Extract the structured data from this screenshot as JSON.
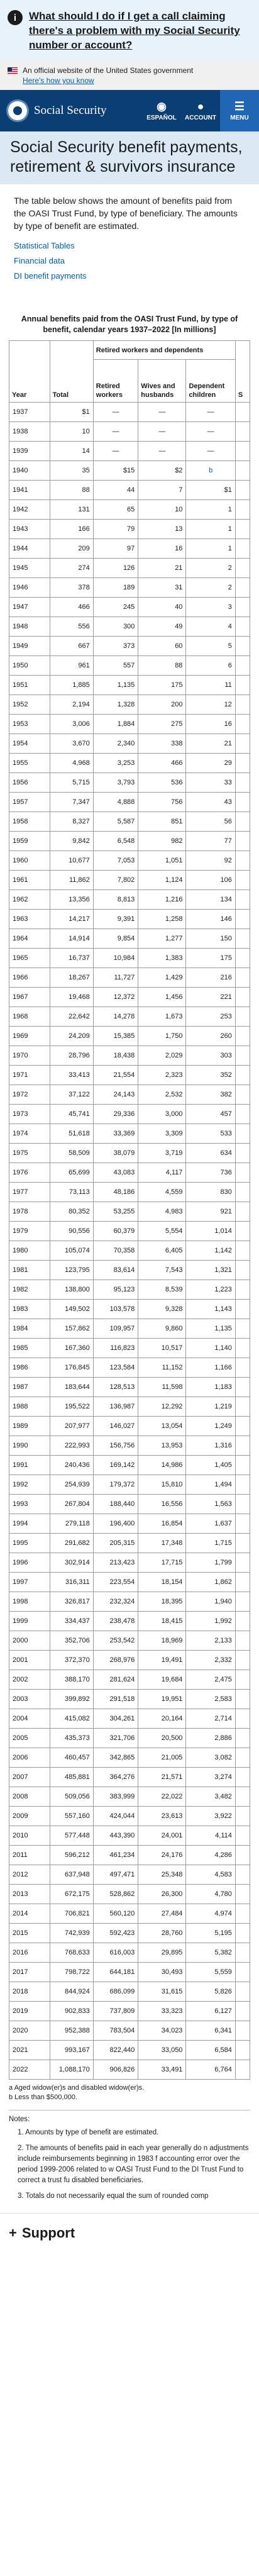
{
  "alert": {
    "icon": "info-icon",
    "link_text": "What should I do if I get a call claiming there's a problem with my Social Security number or account?"
  },
  "gov_banner": {
    "text": "An official website of the United States government",
    "how": "Here's how you know"
  },
  "header": {
    "logo_text": "Social Security",
    "espanol": "ESPAÑOL",
    "account": "ACCOUNT",
    "menu": "MENU"
  },
  "page": {
    "title": "Social Security benefit payments, retirement & survivors insurance",
    "intro": "The table below shows the amount of benefits paid from the OASI Trust Fund, by type of beneficiary. The amounts by type of benefit are estimated.",
    "links": [
      "Statistical Tables",
      "Financial data",
      "DI benefit payments"
    ]
  },
  "table": {
    "caption": "Annual benefits paid from the OASI Trust Fund, by type of benefit, calendar years 1937–2022 [In millions]",
    "group_header": "Retired workers and dependents",
    "headers": {
      "year": "Year",
      "total": "Total",
      "retired": "Retired workers",
      "wives": "Wives and husbands",
      "children": "Dependent children",
      "extra": "S"
    },
    "rows": [
      [
        "1937",
        "$1",
        "—",
        "—",
        "—"
      ],
      [
        "1938",
        "10",
        "—",
        "—",
        "—"
      ],
      [
        "1939",
        "14",
        "—",
        "—",
        "—"
      ],
      [
        "1940",
        "35",
        "$15",
        "$2",
        "b"
      ],
      [
        "1941",
        "88",
        "44",
        "7",
        "$1"
      ],
      [
        "1942",
        "131",
        "65",
        "10",
        "1"
      ],
      [
        "1943",
        "166",
        "79",
        "13",
        "1"
      ],
      [
        "1944",
        "209",
        "97",
        "16",
        "1"
      ],
      [
        "1945",
        "274",
        "126",
        "21",
        "2"
      ],
      [
        "1946",
        "378",
        "189",
        "31",
        "2"
      ],
      [
        "1947",
        "466",
        "245",
        "40",
        "3"
      ],
      [
        "1948",
        "556",
        "300",
        "49",
        "4"
      ],
      [
        "1949",
        "667",
        "373",
        "60",
        "5"
      ],
      [
        "1950",
        "961",
        "557",
        "88",
        "6"
      ],
      [
        "1951",
        "1,885",
        "1,135",
        "175",
        "11"
      ],
      [
        "1952",
        "2,194",
        "1,328",
        "200",
        "12"
      ],
      [
        "1953",
        "3,006",
        "1,884",
        "275",
        "16"
      ],
      [
        "1954",
        "3,670",
        "2,340",
        "338",
        "21"
      ],
      [
        "1955",
        "4,968",
        "3,253",
        "466",
        "29"
      ],
      [
        "1956",
        "5,715",
        "3,793",
        "536",
        "33"
      ],
      [
        "1957",
        "7,347",
        "4,888",
        "756",
        "43"
      ],
      [
        "1958",
        "8,327",
        "5,587",
        "851",
        "56"
      ],
      [
        "1959",
        "9,842",
        "6,548",
        "982",
        "77"
      ],
      [
        "1960",
        "10,677",
        "7,053",
        "1,051",
        "92"
      ],
      [
        "1961",
        "11,862",
        "7,802",
        "1,124",
        "106"
      ],
      [
        "1962",
        "13,356",
        "8,813",
        "1,216",
        "134"
      ],
      [
        "1963",
        "14,217",
        "9,391",
        "1,258",
        "146"
      ],
      [
        "1964",
        "14,914",
        "9,854",
        "1,277",
        "150"
      ],
      [
        "1965",
        "16,737",
        "10,984",
        "1,383",
        "175"
      ],
      [
        "1966",
        "18,267",
        "11,727",
        "1,429",
        "216"
      ],
      [
        "1967",
        "19,468",
        "12,372",
        "1,456",
        "221"
      ],
      [
        "1968",
        "22,642",
        "14,278",
        "1,673",
        "253"
      ],
      [
        "1969",
        "24,209",
        "15,385",
        "1,750",
        "260"
      ],
      [
        "1970",
        "28,796",
        "18,438",
        "2,029",
        "303"
      ],
      [
        "1971",
        "33,413",
        "21,554",
        "2,323",
        "352"
      ],
      [
        "1972",
        "37,122",
        "24,143",
        "2,532",
        "382"
      ],
      [
        "1973",
        "45,741",
        "29,336",
        "3,000",
        "457"
      ],
      [
        "1974",
        "51,618",
        "33,369",
        "3,309",
        "533"
      ],
      [
        "1975",
        "58,509",
        "38,079",
        "3,719",
        "634"
      ],
      [
        "1976",
        "65,699",
        "43,083",
        "4,117",
        "736"
      ],
      [
        "1977",
        "73,113",
        "48,186",
        "4,559",
        "830"
      ],
      [
        "1978",
        "80,352",
        "53,255",
        "4,983",
        "921"
      ],
      [
        "1979",
        "90,556",
        "60,379",
        "5,554",
        "1,014"
      ],
      [
        "1980",
        "105,074",
        "70,358",
        "6,405",
        "1,142"
      ],
      [
        "1981",
        "123,795",
        "83,614",
        "7,543",
        "1,321"
      ],
      [
        "1982",
        "138,800",
        "95,123",
        "8,539",
        "1,223"
      ],
      [
        "1983",
        "149,502",
        "103,578",
        "9,328",
        "1,143"
      ],
      [
        "1984",
        "157,862",
        "109,957",
        "9,860",
        "1,135"
      ],
      [
        "1985",
        "167,360",
        "116,823",
        "10,517",
        "1,140"
      ],
      [
        "1986",
        "176,845",
        "123,584",
        "11,152",
        "1,166"
      ],
      [
        "1987",
        "183,644",
        "128,513",
        "11,598",
        "1,183"
      ],
      [
        "1988",
        "195,522",
        "136,987",
        "12,292",
        "1,219"
      ],
      [
        "1989",
        "207,977",
        "146,027",
        "13,054",
        "1,249"
      ],
      [
        "1990",
        "222,993",
        "156,756",
        "13,953",
        "1,316"
      ],
      [
        "1991",
        "240,436",
        "169,142",
        "14,986",
        "1,405"
      ],
      [
        "1992",
        "254,939",
        "179,372",
        "15,810",
        "1,494"
      ],
      [
        "1993",
        "267,804",
        "188,440",
        "16,556",
        "1,563"
      ],
      [
        "1994",
        "279,118",
        "196,400",
        "16,854",
        "1,637"
      ],
      [
        "1995",
        "291,682",
        "205,315",
        "17,348",
        "1,715"
      ],
      [
        "1996",
        "302,914",
        "213,423",
        "17,715",
        "1,799"
      ],
      [
        "1997",
        "316,311",
        "223,554",
        "18,154",
        "1,862"
      ],
      [
        "1998",
        "326,817",
        "232,324",
        "18,395",
        "1,940"
      ],
      [
        "1999",
        "334,437",
        "238,478",
        "18,415",
        "1,992"
      ],
      [
        "2000",
        "352,706",
        "253,542",
        "18,969",
        "2,133"
      ],
      [
        "2001",
        "372,370",
        "268,976",
        "19,491",
        "2,332"
      ],
      [
        "2002",
        "388,170",
        "281,624",
        "19,684",
        "2,475"
      ],
      [
        "2003",
        "399,892",
        "291,518",
        "19,951",
        "2,583"
      ],
      [
        "2004",
        "415,082",
        "304,261",
        "20,164",
        "2,714"
      ],
      [
        "2005",
        "435,373",
        "321,706",
        "20,500",
        "2,886"
      ],
      [
        "2006",
        "460,457",
        "342,865",
        "21,005",
        "3,082"
      ],
      [
        "2007",
        "485,881",
        "364,276",
        "21,571",
        "3,274"
      ],
      [
        "2008",
        "509,056",
        "383,999",
        "22,022",
        "3,482"
      ],
      [
        "2009",
        "557,160",
        "424,044",
        "23,613",
        "3,922"
      ],
      [
        "2010",
        "577,448",
        "443,390",
        "24,001",
        "4,114"
      ],
      [
        "2011",
        "596,212",
        "461,234",
        "24,176",
        "4,286"
      ],
      [
        "2012",
        "637,948",
        "497,471",
        "25,348",
        "4,583"
      ],
      [
        "2013",
        "672,175",
        "528,862",
        "26,300",
        "4,780"
      ],
      [
        "2014",
        "706,821",
        "560,120",
        "27,484",
        "4,974"
      ],
      [
        "2015",
        "742,939",
        "592,423",
        "28,760",
        "5,195"
      ],
      [
        "2016",
        "768,633",
        "616,003",
        "29,895",
        "5,382"
      ],
      [
        "2017",
        "798,722",
        "644,181",
        "30,493",
        "5,559"
      ],
      [
        "2018",
        "844,924",
        "686,099",
        "31,615",
        "5,826"
      ],
      [
        "2019",
        "902,833",
        "737,809",
        "33,323",
        "6,127"
      ],
      [
        "2020",
        "952,388",
        "783,504",
        "34,023",
        "6,341"
      ],
      [
        "2021",
        "993,167",
        "822,440",
        "33,050",
        "6,584"
      ],
      [
        "2022",
        "1,088,170",
        "906,826",
        "33,491",
        "6,764"
      ]
    ]
  },
  "footnotes": [
    "a Aged widow(er)s and disabled widow(er)s.",
    "b Less than $500,000."
  ],
  "notes": {
    "heading": "Notes:",
    "items": [
      "1. Amounts by type of benefit are estimated.",
      "2. The amounts of benefits paid in each year generally do n adjustments include reimbursements beginning in 1983 f accounting error over the period 1999-2006 related to w OASI Trust Fund to the DI Trust Fund to correct a trust fu disabled beneficiaries.",
      "3. Totals do not necessarily equal the sum of rounded comp"
    ]
  },
  "support": {
    "title": "Support"
  }
}
